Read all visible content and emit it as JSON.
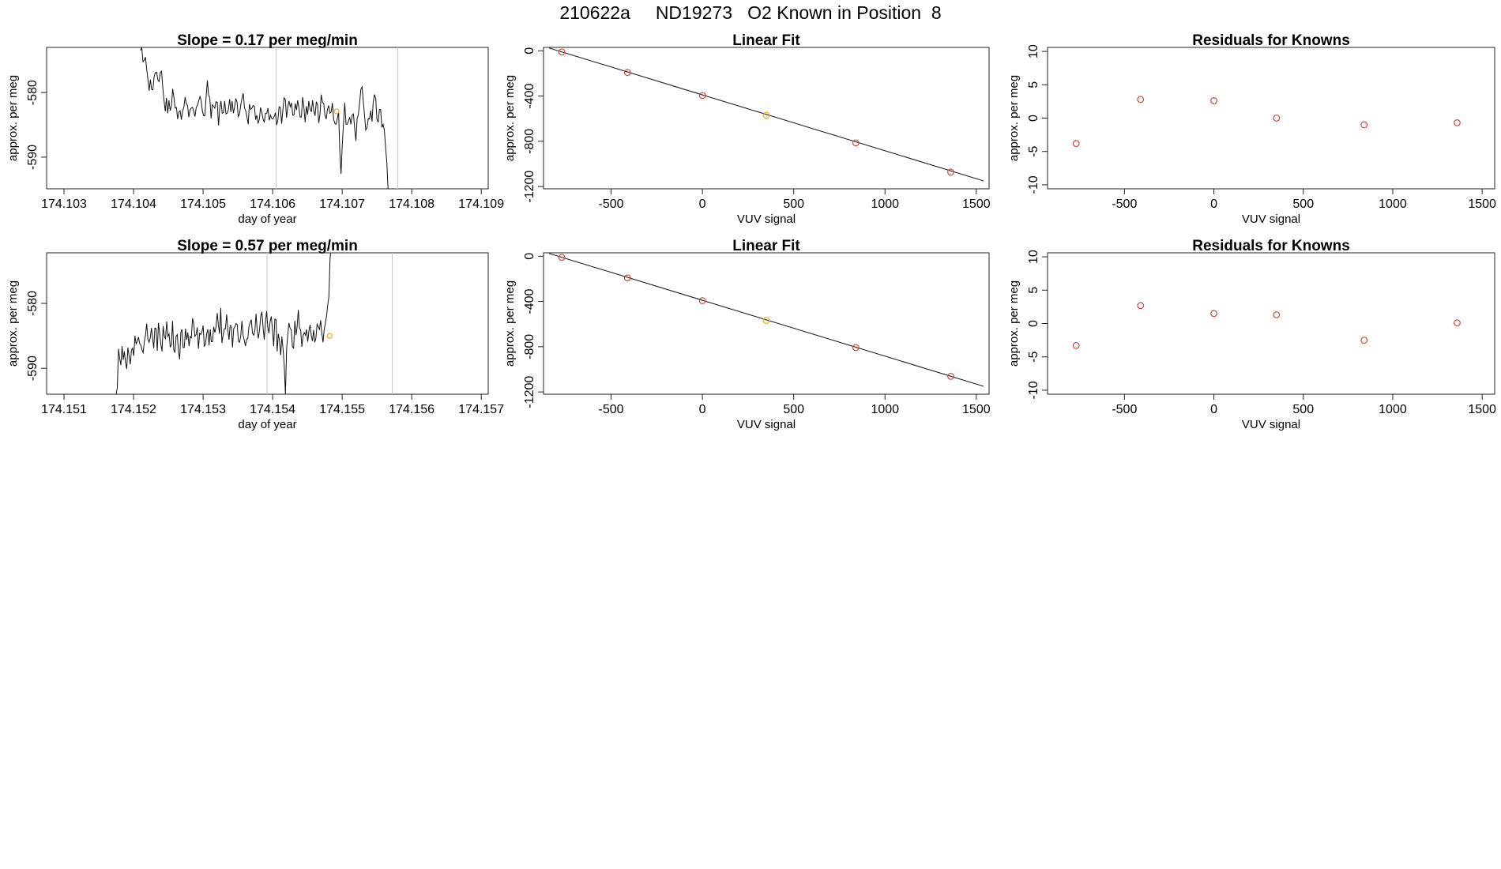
{
  "page": {
    "title": "210622a     ND19273   O2 Known in Position  8"
  },
  "chart_data": [
    {
      "id": "ts1",
      "type": "line",
      "title": "Slope =  0.17  per meg/min",
      "xlabel": "day of year",
      "ylabel": "approx. per meg",
      "xlim": [
        174.10275,
        174.1091
      ],
      "ylim": [
        -594.9,
        -573.0
      ],
      "xticks": [
        174.103,
        174.104,
        174.105,
        174.106,
        174.107,
        174.108,
        174.109
      ],
      "yticks": [
        -590,
        -580
      ],
      "vlines": [
        174.10605,
        174.1078
      ],
      "x_start": 174.1041,
      "x_step": 1.78e-05,
      "values": [
        -573.5,
        -573.0,
        -575.2,
        -575.0,
        -574.5,
        -576.4,
        -577.9,
        -579.7,
        -578.0,
        -579.5,
        -579.6,
        -577.5,
        -576.9,
        -576.8,
        -578.0,
        -578.3,
        -576.9,
        -576.7,
        -579.1,
        -581.2,
        -582.9,
        -580.8,
        -583.2,
        -581.2,
        -582.8,
        -582.1,
        -579.4,
        -580.8,
        -582.4,
        -582.3,
        -584.1,
        -583.0,
        -582.8,
        -584.2,
        -582.9,
        -582.3,
        -580.7,
        -581.7,
        -582.0,
        -583.8,
        -582.7,
        -582.4,
        -582.3,
        -582.9,
        -583.7,
        -582.3,
        -582.0,
        -581.3,
        -580.6,
        -581.2,
        -582.9,
        -583.6,
        -583.6,
        -580.7,
        -578.1,
        -580.3,
        -580.9,
        -584.0,
        -581.9,
        -582.1,
        -582.4,
        -581.4,
        -581.5,
        -585.1,
        -582.5,
        -581.3,
        -583.2,
        -583.1,
        -581.3,
        -583.3,
        -583.2,
        -582.6,
        -581.0,
        -583.0,
        -581.3,
        -583.2,
        -582.3,
        -580.9,
        -581.5,
        -583.7,
        -583.3,
        -581.9,
        -580.9,
        -580.1,
        -582.4,
        -582.8,
        -583.8,
        -584.9,
        -581.8,
        -582.6,
        -582.4,
        -582.0,
        -582.1,
        -584.2,
        -583.5,
        -584.8,
        -584.1,
        -582.3,
        -583.1,
        -584.1,
        -584.6,
        -583.2,
        -583.2,
        -582.4,
        -584.3,
        -583.5,
        -584.0,
        -584.1,
        -583.7,
        -583.1,
        -585.0,
        -584.2,
        -582.2,
        -582.3,
        -584.8,
        -582.8,
        -580.8,
        -581.1,
        -583.9,
        -582.2,
        -581.3,
        -582.2,
        -581.6,
        -583.5,
        -583.5,
        -581.7,
        -582.7,
        -581.2,
        -582.4,
        -583.8,
        -583.8,
        -580.7,
        -582.3,
        -584.6,
        -582.1,
        -583.4,
        -581.3,
        -582.5,
        -583.0,
        -581.2,
        -582.8,
        -583.6,
        -581.4,
        -581.9,
        -584.7,
        -583.3,
        -580.3,
        -581.5,
        -581.7,
        -583.5,
        -584.1,
        -582.6,
        -582.0,
        -583.2,
        -583.0,
        -581.6,
        -584.1,
        -584.8,
        -584.9,
        -584.0,
        -583.0,
        -589.0,
        -592.6,
        -588.0,
        -584.8,
        -581.6,
        -584.9,
        -584.9,
        -584.4,
        -583.8,
        -584.9,
        -583.5,
        -583.3,
        -585.5,
        -587.5,
        -584.0,
        -583.4,
        -581.6,
        -579.5,
        -579.1,
        -581.4,
        -583.6,
        -585.8,
        -585.4,
        -584.0,
        -584.1,
        -582.8,
        -584.5,
        -581.5,
        -580.3,
        -580.9,
        -584.1,
        -584.6,
        -582.6,
        -582.6,
        -585.4,
        -584.9,
        -585.8,
        -588.5,
        -590.9,
        -595.0
      ],
      "marker": {
        "x": 174.10692,
        "y": -582.9,
        "color": "#f5a623"
      }
    },
    {
      "id": "fit1",
      "type": "scatter",
      "title": "Linear Fit",
      "xlabel": "VUV signal",
      "ylabel": "approx. per meg",
      "xlim": [
        -870,
        1570
      ],
      "ylim": [
        -1220,
        30
      ],
      "xticks": [
        -500,
        0,
        500,
        1000,
        1500
      ],
      "yticks": [
        0,
        -400,
        -800,
        -1200
      ],
      "fit_line": [
        [
          -840,
          25
        ],
        [
          1540,
          -1150
        ]
      ],
      "points": [
        {
          "x": -770,
          "y": -10,
          "color": "#d2473c"
        },
        {
          "x": -410,
          "y": -192,
          "color": "#d2473c"
        },
        {
          "x": 0,
          "y": -395,
          "color": "#d2473c"
        },
        {
          "x": 350,
          "y": -570,
          "color": "#f5a623"
        },
        {
          "x": 840,
          "y": -814,
          "color": "#d2473c"
        },
        {
          "x": 1360,
          "y": -1072,
          "color": "#d2473c"
        }
      ]
    },
    {
      "id": "res1",
      "type": "scatter",
      "title": "Residuals for Knowns",
      "xlabel": "VUV signal",
      "ylabel": "approx. per meg",
      "xlim": [
        -930,
        1570
      ],
      "ylim": [
        -10.6,
        10.6
      ],
      "xticks": [
        -500,
        0,
        500,
        1000,
        1500
      ],
      "yticks": [
        10,
        5,
        0,
        -5,
        -10
      ],
      "points": [
        {
          "x": -770,
          "y": -3.8,
          "color": "#d2473c"
        },
        {
          "x": -410,
          "y": 2.8,
          "color": "#d2473c"
        },
        {
          "x": 0,
          "y": 2.6,
          "color": "#d2473c"
        },
        {
          "x": 350,
          "y": 0.0,
          "color": "#d2473c"
        },
        {
          "x": 840,
          "y": -1.0,
          "color": "#d2473c"
        },
        {
          "x": 1360,
          "y": -0.7,
          "color": "#d2473c"
        }
      ]
    },
    {
      "id": "ts2",
      "type": "line",
      "title": "Slope =  0.57  per meg/min",
      "xlabel": "day of year",
      "ylabel": "approx. per meg",
      "xlim": [
        174.15075,
        174.1571
      ],
      "ylim": [
        -594.0,
        -572.2
      ],
      "xticks": [
        174.151,
        174.152,
        174.153,
        174.154,
        174.155,
        174.156,
        174.157
      ],
      "yticks": [
        -590,
        -580
      ],
      "vlines": [
        174.15392,
        174.15572
      ],
      "x_start": 174.15175,
      "x_step": 1.69e-05,
      "values": [
        -594.0,
        -593.0,
        -587.0,
        -588.5,
        -589.5,
        -586.6,
        -588.7,
        -587.4,
        -589.1,
        -590.1,
        -586.8,
        -588.1,
        -589.4,
        -587.2,
        -586.9,
        -588.1,
        -585.0,
        -586.3,
        -585.8,
        -585.2,
        -586.2,
        -586.4,
        -587.2,
        -587.6,
        -585.9,
        -584.9,
        -583.1,
        -585.5,
        -586.0,
        -585.3,
        -583.8,
        -585.4,
        -586.9,
        -583.8,
        -583.9,
        -587.3,
        -583.0,
        -584.6,
        -586.3,
        -587.4,
        -583.5,
        -585.1,
        -585.5,
        -582.8,
        -585.1,
        -584.7,
        -586.7,
        -586.4,
        -582.7,
        -587.1,
        -587.6,
        -585.1,
        -584.8,
        -587.4,
        -588.6,
        -584.5,
        -584.0,
        -586.8,
        -586.8,
        -583.9,
        -585.6,
        -584.5,
        -586.6,
        -585.1,
        -585.3,
        -582.3,
        -583.1,
        -585.1,
        -584.8,
        -583.7,
        -587.0,
        -584.6,
        -584.8,
        -584.4,
        -583.4,
        -586.6,
        -586.3,
        -584.7,
        -584.0,
        -586.5,
        -584.0,
        -585.9,
        -585.9,
        -583.6,
        -584.5,
        -583.6,
        -581.5,
        -583.4,
        -584.7,
        -580.7,
        -586.1,
        -584.9,
        -583.9,
        -583.9,
        -581.7,
        -584.1,
        -585.6,
        -583.4,
        -583.5,
        -586.8,
        -583.9,
        -583.6,
        -583.1,
        -583.3,
        -585.8,
        -586.0,
        -585.1,
        -582.7,
        -584.9,
        -585.7,
        -586.6,
        -585.5,
        -585.4,
        -583.6,
        -583.0,
        -582.5,
        -584.6,
        -584.9,
        -584.2,
        -581.6,
        -584.2,
        -585.4,
        -584.1,
        -582.0,
        -581.3,
        -583.7,
        -585.6,
        -582.9,
        -581.2,
        -583.5,
        -584.6,
        -582.8,
        -582.0,
        -584.0,
        -586.6,
        -582.4,
        -582.5,
        -587.4,
        -584.7,
        -585.8,
        -588.0,
        -585.1,
        -587.0,
        -589.6,
        -594.0,
        -587.0,
        -585.0,
        -583.0,
        -583.8,
        -584.1,
        -586.7,
        -586.9,
        -582.7,
        -584.9,
        -583.6,
        -581.0,
        -583.8,
        -584.1,
        -586.7,
        -585.0,
        -584.5,
        -584.9,
        -584.0,
        -585.9,
        -584.3,
        -583.3,
        -585.0,
        -585.8,
        -584.1,
        -586.0,
        -585.3,
        -583.2,
        -583.6,
        -584.0,
        -582.6,
        -584.6,
        -586.0,
        -584.0,
        -583.1,
        -582.0,
        -580.3,
        -579.0,
        -573.0,
        -571.5
      ],
      "marker": {
        "x": 174.15482,
        "y": -585.0,
        "color": "#f5a623"
      }
    },
    {
      "id": "fit2",
      "type": "scatter",
      "title": "Linear Fit",
      "xlabel": "VUV signal",
      "ylabel": "approx. per meg",
      "xlim": [
        -870,
        1570
      ],
      "ylim": [
        -1220,
        30
      ],
      "xticks": [
        -500,
        0,
        500,
        1000,
        1500
      ],
      "yticks": [
        0,
        -400,
        -800,
        -1200
      ],
      "fit_line": [
        [
          -840,
          25
        ],
        [
          1540,
          -1150
        ]
      ],
      "points": [
        {
          "x": -770,
          "y": -10,
          "color": "#d2473c"
        },
        {
          "x": -410,
          "y": -192,
          "color": "#d2473c"
        },
        {
          "x": 0,
          "y": -393,
          "color": "#d2473c"
        },
        {
          "x": 350,
          "y": -567,
          "color": "#f5a623"
        },
        {
          "x": 840,
          "y": -808,
          "color": "#d2473c"
        },
        {
          "x": 1360,
          "y": -1062,
          "color": "#d2473c"
        }
      ]
    },
    {
      "id": "res2",
      "type": "scatter",
      "title": "Residuals for Knowns",
      "xlabel": "VUV signal",
      "ylabel": "approx. per meg",
      "xlim": [
        -930,
        1570
      ],
      "ylim": [
        -10.6,
        10.6
      ],
      "xticks": [
        -500,
        0,
        500,
        1000,
        1500
      ],
      "yticks": [
        10,
        5,
        0,
        -5,
        -10
      ],
      "points": [
        {
          "x": -770,
          "y": -3.3,
          "color": "#d2473c"
        },
        {
          "x": -410,
          "y": 2.7,
          "color": "#d2473c"
        },
        {
          "x": 0,
          "y": 1.5,
          "color": "#d2473c"
        },
        {
          "x": 350,
          "y": 1.3,
          "color": "#d2473c"
        },
        {
          "x": 840,
          "y": -2.5,
          "color": "#d2473c"
        },
        {
          "x": 1360,
          "y": 0.1,
          "color": "#d2473c"
        }
      ]
    }
  ]
}
